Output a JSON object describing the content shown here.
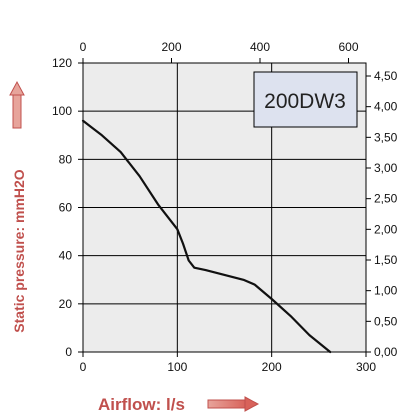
{
  "chart_data": {
    "type": "line",
    "title": "",
    "model_label": "200DW3",
    "xlabel": "Airflow: l/s",
    "ylabel": "Static pressure: mmH2O",
    "xlim": [
      0,
      300
    ],
    "ylim": [
      0,
      120
    ],
    "x_ticks": [
      "0",
      "100",
      "200",
      "300"
    ],
    "y_ticks": [
      "0",
      "20",
      "40",
      "60",
      "80",
      "100",
      "120"
    ],
    "top_axis_ticks": [
      "0",
      "200",
      "400",
      "600"
    ],
    "right_axis_ticks": [
      "0,00",
      "0,50",
      "1,00",
      "1,50",
      "2,00",
      "2,50",
      "3,00",
      "3,50",
      "4,00",
      "4,50"
    ],
    "grid": true,
    "series": [
      {
        "x": [
          0,
          20,
          40,
          60,
          80,
          100,
          106,
          112,
          118,
          130,
          150,
          170,
          182,
          200,
          220,
          240,
          262
        ],
        "y": [
          96,
          90,
          83,
          73,
          61,
          51,
          45,
          38,
          35,
          34,
          32,
          30,
          28,
          22,
          15,
          7,
          0
        ]
      }
    ],
    "colors": {
      "line": "#111111",
      "plot_bg": "#ececec",
      "axis_title": "#c0504d",
      "label_box_bg": "#dde2ef"
    }
  }
}
